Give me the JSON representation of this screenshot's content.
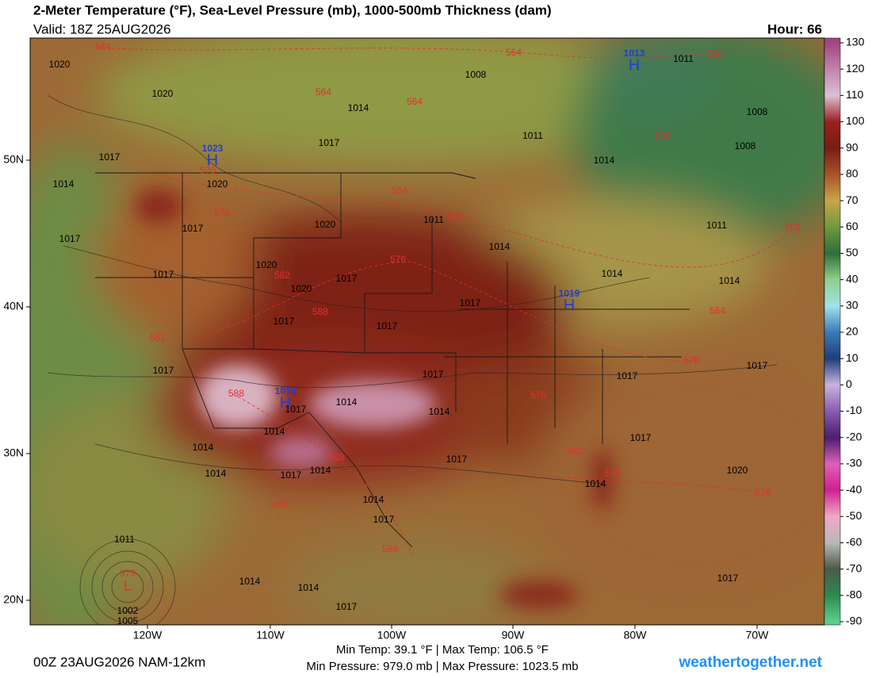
{
  "header": {
    "title": "2-Meter Temperature (°F), Sea-Level Pressure (mb), 1000-500mb Thickness (dam)",
    "valid": "Valid: 18Z 25AUG2026",
    "hour": "Hour: 66"
  },
  "colorbar": {
    "lim": [
      -90,
      130
    ],
    "ticks": [
      130,
      120,
      110,
      100,
      90,
      80,
      70,
      60,
      50,
      40,
      30,
      20,
      10,
      0,
      -10,
      -20,
      -30,
      -40,
      -50,
      -60,
      -70,
      -80,
      -90
    ],
    "colors": [
      "#a2457f",
      "#c283ad",
      "#dcc0d3",
      "#9b1f22",
      "#7a1c14",
      "#a8522a",
      "#c8a54a",
      "#6f9a3e",
      "#2f6e3a",
      "#8fd08a",
      "#9fe3e8",
      "#3b7ab8",
      "#1e3f7a",
      "#c8b3e0",
      "#8a5bb0",
      "#4a1e70",
      "#e060b8",
      "#d02090",
      "#f0a8c8",
      "#b8b8b8",
      "#4a5a4a",
      "#2e8a4e",
      "#5ad08a"
    ]
  },
  "map": {
    "longitudes": [
      "120W",
      "110W",
      "100W",
      "90W",
      "80W",
      "70W"
    ],
    "latitudes": [
      "50N",
      "40N",
      "30N",
      "20N"
    ],
    "highs": [
      {
        "pressure": 1023,
        "symbol": "H"
      },
      {
        "pressure": 1013,
        "symbol": "H"
      },
      {
        "pressure": 1019,
        "symbol": "H"
      },
      {
        "pressure": 1016,
        "symbol": "H"
      }
    ],
    "low": {
      "pressure": 979,
      "symbol": "L"
    },
    "isobar_labels": [
      1020,
      1020,
      1008,
      1011,
      1014,
      1011,
      1017,
      1014,
      1008,
      1008,
      1017,
      1014,
      1020,
      1017,
      1020,
      1011,
      1017,
      1014,
      1011,
      1020,
      1017,
      1017,
      1020,
      1014,
      1014,
      1017,
      1017,
      1017,
      1017,
      1017,
      1017,
      1017,
      1014,
      1017,
      1014,
      1014,
      1017,
      1014,
      1014,
      1014,
      1017,
      1017,
      1014,
      1020,
      1014,
      1017,
      1011,
      1014,
      1014,
      1002,
      1005,
      1017,
      1017
    ],
    "thickness_labels": [
      564,
      564,
      558,
      564,
      564,
      558,
      570,
      564,
      570,
      576,
      576,
      582,
      588,
      582,
      564,
      570,
      588,
      576,
      588,
      582,
      588,
      576,
      576,
      558,
      582
    ]
  },
  "footer": {
    "run": "00Z 23AUG2026 NAM-12km",
    "temps": "Min Temp:  39.1 °F | Max Temp: 106.5 °F",
    "pressures": "Min Pressure: 979.0 mb | Max Pressure: 1023.5 mb",
    "site": "weathertogether.net"
  }
}
